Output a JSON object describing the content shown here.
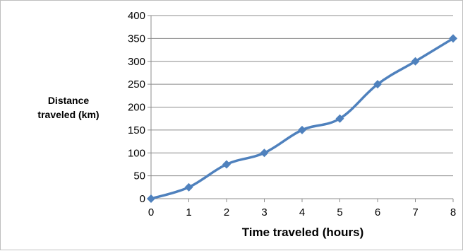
{
  "chart_data": {
    "type": "line",
    "x": [
      0,
      1,
      2,
      3,
      4,
      5,
      6,
      7,
      8
    ],
    "series": [
      {
        "values": [
          0,
          25,
          75,
          100,
          150,
          175,
          250,
          300,
          350
        ]
      }
    ],
    "xlabel": "Time traveled (hours)",
    "ylabel_lines": [
      "Distance",
      "traveled (km)"
    ],
    "ylim": [
      0,
      400
    ],
    "yticks": [
      0,
      50,
      100,
      150,
      200,
      250,
      300,
      350,
      400
    ],
    "xlim": [
      0,
      8
    ],
    "grid": true,
    "legend": "none",
    "line_color": "#4f81bd",
    "marker": "diamond"
  }
}
